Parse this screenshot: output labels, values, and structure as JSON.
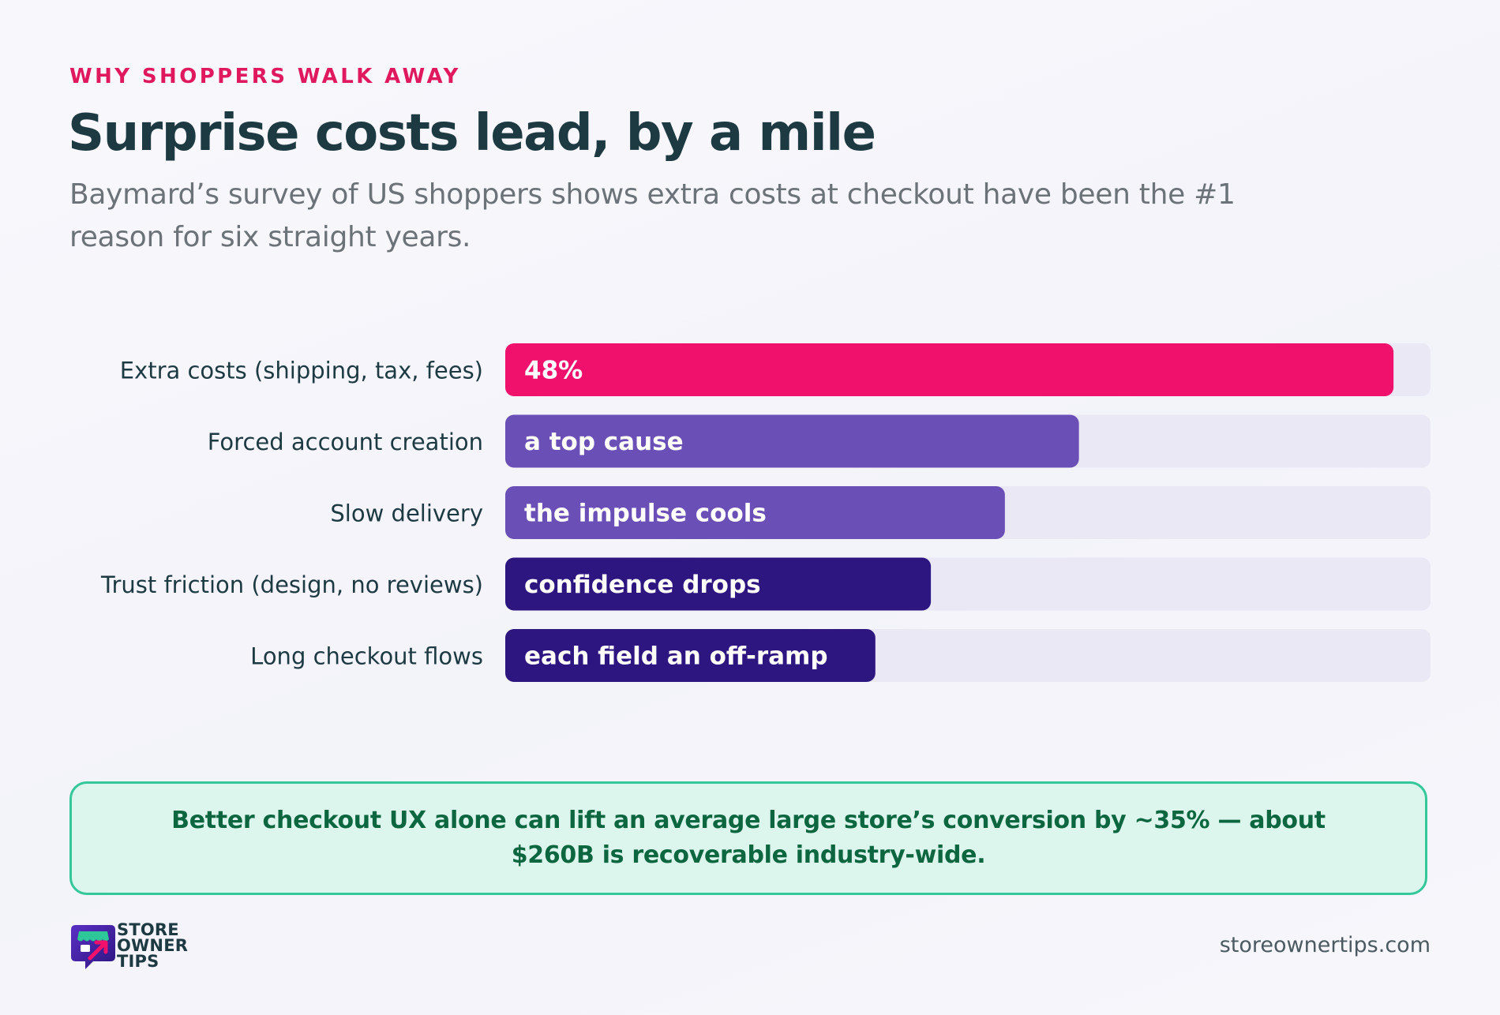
{
  "header": {
    "eyebrow": "WHY SHOPPERS WALK AWAY",
    "title": "Surprise costs lead, by a mile",
    "subtitle": "Baymard’s survey of US shoppers shows extra costs at checkout have been the #1 reason for six straight years."
  },
  "chart_data": {
    "type": "bar",
    "orientation": "horizontal",
    "categories": [
      "Extra costs (shipping, tax, fees)",
      "Forced account creation",
      "Slow delivery",
      "Trust friction (design, no reviews)",
      "Long checkout flows"
    ],
    "values": [
      48,
      31,
      27,
      23,
      20
    ],
    "data_labels": [
      "48%",
      "a top cause",
      "the impulse cools",
      "confidence drops",
      "each field an off-ramp"
    ],
    "colors": [
      "#ef116b",
      "#6a50b6",
      "#6a50b6",
      "#2d1680",
      "#2d1680"
    ],
    "track_color": "#ebe8f5",
    "xlim": [
      0,
      50
    ],
    "grid": false
  },
  "callout": {
    "text": "Better checkout UX alone can lift an average large store’s conversion by ~35% — about $260B is recoverable industry-wide."
  },
  "footer": {
    "logo_lines": [
      "STORE",
      "OWNER",
      "TIPS"
    ],
    "site": "storeownertips.com"
  }
}
